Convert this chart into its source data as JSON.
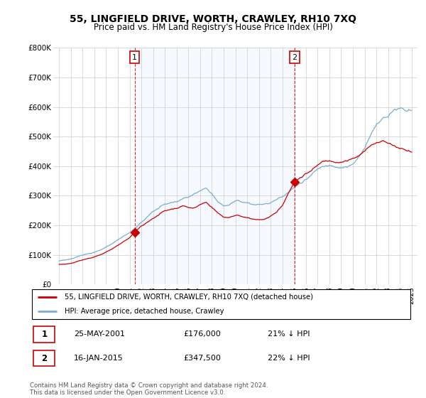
{
  "title": "55, LINGFIELD DRIVE, WORTH, CRAWLEY, RH10 7XQ",
  "subtitle": "Price paid vs. HM Land Registry's House Price Index (HPI)",
  "title_fontsize": 10,
  "subtitle_fontsize": 8.5,
  "ylim": [
    0,
    800000
  ],
  "yticks": [
    0,
    100000,
    200000,
    300000,
    400000,
    500000,
    600000,
    700000,
    800000
  ],
  "ytick_labels": [
    "£0",
    "£100K",
    "£200K",
    "£300K",
    "£400K",
    "£500K",
    "£600K",
    "£700K",
    "£800K"
  ],
  "sale1_year": 2001.42,
  "sale1_price": 176000,
  "sale1_label": "1",
  "sale1_date": "25-MAY-2001",
  "sale1_amount": "£176,000",
  "sale1_pct": "21% ↓ HPI",
  "sale2_year": 2015.04,
  "sale2_price": 347500,
  "sale2_label": "2",
  "sale2_date": "16-JAN-2015",
  "sale2_amount": "£347,500",
  "sale2_pct": "22% ↓ HPI",
  "red_color": "#cc0000",
  "blue_color": "#7aadcf",
  "shade_color": "#ddeeff",
  "legend_line1": "55, LINGFIELD DRIVE, WORTH, CRAWLEY, RH10 7XQ (detached house)",
  "legend_line2": "HPI: Average price, detached house, Crawley",
  "footnote": "Contains HM Land Registry data © Crown copyright and database right 2024.\nThis data is licensed under the Open Government Licence v3.0.",
  "bg_color": "#ffffff",
  "grid_color": "#cccccc"
}
